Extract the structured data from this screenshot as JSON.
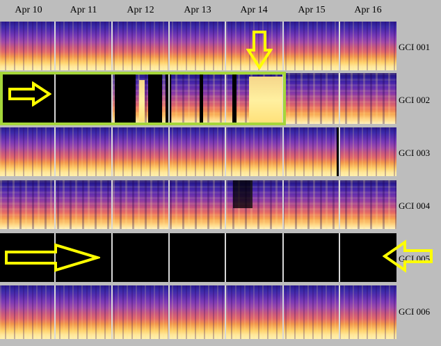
{
  "dates": [
    "Apr 10",
    "Apr 11",
    "Apr 12",
    "Apr 13",
    "Apr 14",
    "Apr 15",
    "Apr 16"
  ],
  "rows": [
    {
      "label": "GCI 001",
      "state": "data"
    },
    {
      "label": "GCI 002",
      "state": "partial-gap"
    },
    {
      "label": "GCI 003",
      "state": "data"
    },
    {
      "label": "GCI 004",
      "state": "data"
    },
    {
      "label": "GCI 005",
      "state": "no-data"
    },
    {
      "label": "GCI 006",
      "state": "data"
    }
  ],
  "colors": {
    "highlight_box": "#a5d63a",
    "arrow_fill": "#ffff00",
    "gap": "#000000",
    "background": "#bdbdbd"
  },
  "annotations": [
    {
      "type": "arrow",
      "icon": "right-arrow-icon",
      "row": "GCI 002"
    },
    {
      "type": "arrow",
      "icon": "down-arrow-icon",
      "row": "GCI 002"
    },
    {
      "type": "arrow",
      "icon": "right-arrow-icon",
      "row": "GCI 005"
    },
    {
      "type": "arrow",
      "icon": "left-arrow-icon",
      "row": "GCI 005"
    }
  ]
}
